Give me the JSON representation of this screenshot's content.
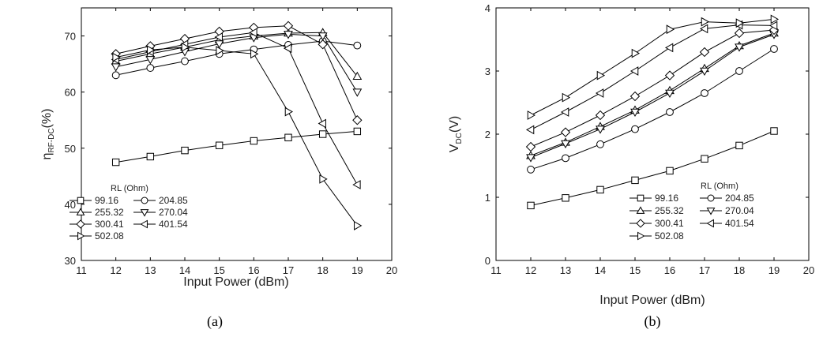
{
  "chart_data": [
    {
      "type": "line",
      "panel_label": "(a)",
      "xlabel": "Input Power (dBm)",
      "ylabel_main": "η",
      "ylabel_sub": "RF-DC",
      "ylabel_suffix": "(%)",
      "xlim": [
        11,
        20
      ],
      "ylim": [
        30,
        75
      ],
      "xticks": [
        11,
        12,
        13,
        14,
        15,
        16,
        17,
        18,
        19,
        20
      ],
      "yticks": [
        30,
        40,
        50,
        60,
        70
      ],
      "legend_title": "RL (Ohm)",
      "legend_position": "bottom-left",
      "x": [
        12,
        13,
        14,
        15,
        16,
        17,
        18,
        19
      ],
      "series": [
        {
          "name": "99.16",
          "marker": "square",
          "values": [
            47.5,
            48.5,
            49.6,
            50.5,
            51.3,
            51.9,
            52.5,
            53.0
          ]
        },
        {
          "name": "204.85",
          "marker": "circle",
          "values": [
            63.0,
            64.3,
            65.5,
            66.8,
            67.6,
            68.4,
            69.1,
            68.3
          ]
        },
        {
          "name": "255.32",
          "marker": "triangle-up",
          "values": [
            65.5,
            66.8,
            68.0,
            69.3,
            70.0,
            70.5,
            70.6,
            62.8
          ]
        },
        {
          "name": "270.04",
          "marker": "triangle-down",
          "values": [
            64.5,
            65.8,
            67.2,
            68.6,
            69.7,
            70.3,
            70.0,
            60.0
          ]
        },
        {
          "name": "300.41",
          "marker": "diamond",
          "values": [
            66.8,
            68.2,
            69.5,
            70.8,
            71.5,
            71.8,
            68.5,
            55.0
          ]
        },
        {
          "name": "401.54",
          "marker": "triangle-left",
          "values": [
            65.8,
            67.2,
            68.5,
            69.8,
            70.6,
            67.8,
            54.4,
            43.5
          ]
        },
        {
          "name": "502.08",
          "marker": "triangle-right",
          "values": [
            66.2,
            67.5,
            68.0,
            67.4,
            66.8,
            56.5,
            44.5,
            36.2
          ]
        }
      ]
    },
    {
      "type": "line",
      "panel_label": "(b)",
      "xlabel": "Input Power (dBm)",
      "ylabel_main": "V",
      "ylabel_sub": "DC",
      "ylabel_suffix": "(V)",
      "xlim": [
        11,
        20
      ],
      "ylim": [
        0,
        4
      ],
      "xticks": [
        11,
        12,
        13,
        14,
        15,
        16,
        17,
        18,
        19,
        20
      ],
      "yticks": [
        0,
        1,
        2,
        3,
        4
      ],
      "legend_title": "RL (Ohm)",
      "legend_position": "bottom-right",
      "x": [
        12,
        13,
        14,
        15,
        16,
        17,
        18,
        19
      ],
      "series": [
        {
          "name": "99.16",
          "marker": "square",
          "values": [
            0.87,
            0.99,
            1.12,
            1.27,
            1.42,
            1.61,
            1.82,
            2.05
          ]
        },
        {
          "name": "204.85",
          "marker": "circle",
          "values": [
            1.44,
            1.62,
            1.84,
            2.08,
            2.35,
            2.65,
            3.0,
            3.35
          ]
        },
        {
          "name": "255.32",
          "marker": "triangle-up",
          "values": [
            1.66,
            1.87,
            2.12,
            2.38,
            2.69,
            3.04,
            3.4,
            3.6
          ]
        },
        {
          "name": "270.04",
          "marker": "triangle-down",
          "values": [
            1.63,
            1.85,
            2.08,
            2.35,
            2.65,
            3.0,
            3.38,
            3.58
          ]
        },
        {
          "name": "300.41",
          "marker": "diamond",
          "values": [
            1.8,
            2.03,
            2.3,
            2.6,
            2.93,
            3.3,
            3.6,
            3.65
          ]
        },
        {
          "name": "401.54",
          "marker": "triangle-left",
          "values": [
            2.07,
            2.35,
            2.65,
            3.0,
            3.37,
            3.67,
            3.73,
            3.72
          ]
        },
        {
          "name": "502.08",
          "marker": "triangle-right",
          "values": [
            2.3,
            2.58,
            2.93,
            3.28,
            3.66,
            3.78,
            3.76,
            3.82
          ]
        }
      ]
    }
  ]
}
